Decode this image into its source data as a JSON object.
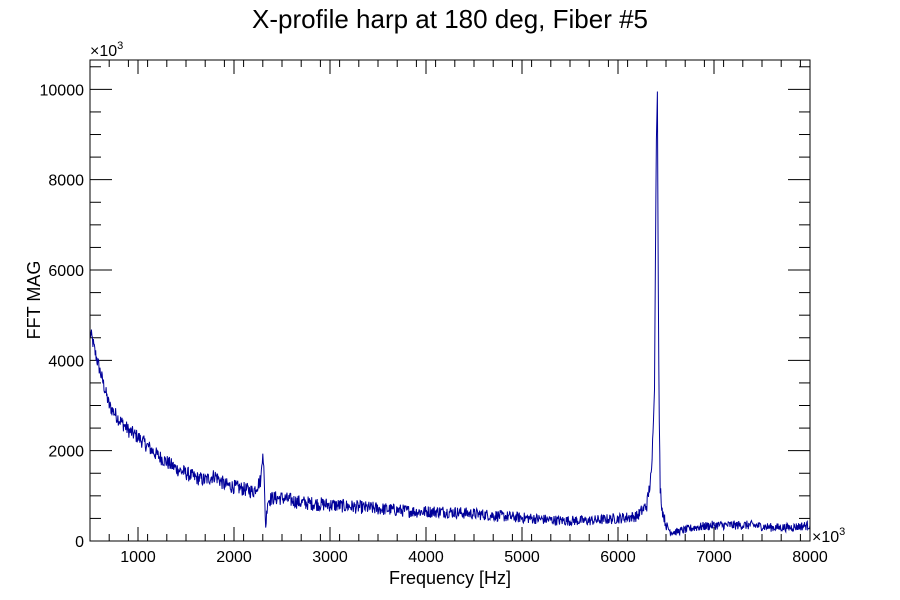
{
  "chart_data": {
    "type": "line",
    "title": "X-profile harp at 180 deg, Fiber #5",
    "xlabel": "Frequency [Hz]",
    "ylabel": "FFT MAG",
    "x_multiplier_label": "×10",
    "x_multiplier_exp": "3",
    "y_multiplier_label": "×10",
    "y_multiplier_exp": "3",
    "xlim": [
      500,
      8000
    ],
    "ylim": [
      0,
      10650
    ],
    "x_major_ticks": [
      1000,
      2000,
      3000,
      4000,
      5000,
      6000,
      7000,
      8000
    ],
    "x_tick_labels": [
      "1000",
      "2000",
      "3000",
      "4000",
      "5000",
      "6000",
      "7000",
      "8000"
    ],
    "y_major_ticks": [
      0,
      2000,
      4000,
      6000,
      8000,
      10000
    ],
    "y_tick_labels": [
      "0",
      "2000",
      "4000",
      "6000",
      "8000",
      "10000"
    ],
    "grid": false,
    "legend": "none",
    "line_color": "#000099",
    "series": [
      {
        "x": [
          500,
          520,
          550,
          600,
          650,
          700,
          800,
          900,
          1000,
          1100,
          1200,
          1300,
          1400,
          1500,
          1600,
          1700,
          1800,
          1900,
          2000,
          2100,
          2200,
          2280,
          2300,
          2310,
          2330,
          2350,
          2400,
          2500,
          2700,
          3000,
          3300,
          3600,
          3900,
          4200,
          4500,
          4800,
          5100,
          5400,
          5700,
          6000,
          6200,
          6300,
          6350,
          6380,
          6400,
          6410,
          6420,
          6430,
          6440,
          6460,
          6500,
          6550,
          6600,
          6700,
          6800,
          7000,
          7200,
          7400,
          7600,
          7800,
          8000
        ],
        "y": [
          4600,
          4500,
          4200,
          3800,
          3400,
          3000,
          2700,
          2450,
          2300,
          2100,
          1900,
          1750,
          1600,
          1500,
          1400,
          1350,
          1450,
          1250,
          1200,
          1150,
          1100,
          1350,
          2050,
          1600,
          300,
          900,
          950,
          950,
          850,
          800,
          750,
          700,
          650,
          650,
          600,
          550,
          500,
          450,
          450,
          500,
          550,
          800,
          1500,
          3500,
          9000,
          10100,
          5500,
          2500,
          1200,
          700,
          350,
          200,
          200,
          250,
          300,
          350,
          350,
          350,
          300,
          300,
          350
        ]
      }
    ]
  }
}
